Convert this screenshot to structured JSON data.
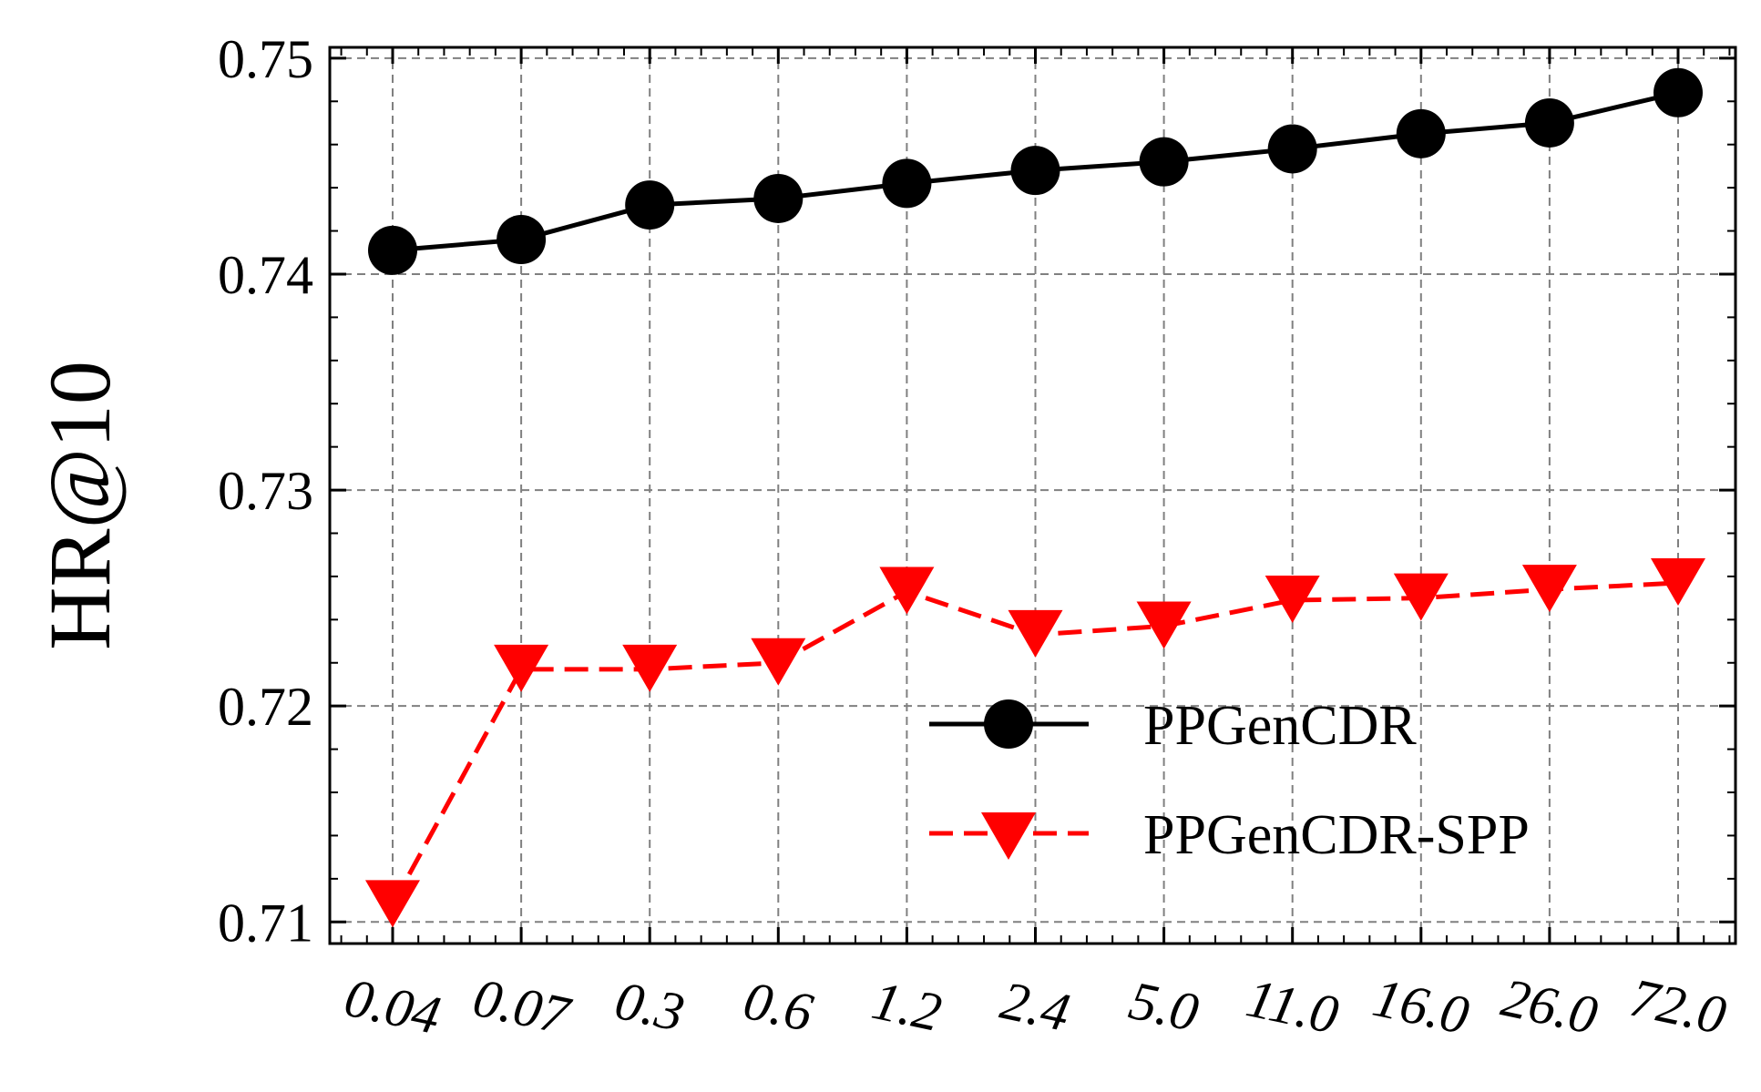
{
  "chart_data": {
    "type": "line",
    "categories": [
      "0.04",
      "0.07",
      "0.3",
      "0.6",
      "1.2",
      "2.4",
      "5.0",
      "11.0",
      "16.0",
      "26.0",
      "72.0"
    ],
    "ylabel": "HR@10",
    "xlabel": "",
    "ylim": [
      0.709,
      0.7505
    ],
    "yticks": [
      "0.71",
      "0.72",
      "0.73",
      "0.74",
      "0.75"
    ],
    "grid": true,
    "legend_position": "lower-right",
    "series": [
      {
        "name": "PPGenCDR",
        "color": "#000000",
        "marker": "circle",
        "linestyle": "solid",
        "values": [
          0.7411,
          0.7416,
          0.7432,
          0.7435,
          0.7442,
          0.7448,
          0.7452,
          0.7458,
          0.7465,
          0.747,
          0.7484
        ]
      },
      {
        "name": "PPGenCDR-SPP",
        "color": "#ff0000",
        "marker": "triangle-down",
        "linestyle": "dashed",
        "values": [
          0.7108,
          0.7217,
          0.7217,
          0.722,
          0.7253,
          0.7233,
          0.7237,
          0.7249,
          0.725,
          0.7254,
          0.7257
        ]
      }
    ]
  }
}
